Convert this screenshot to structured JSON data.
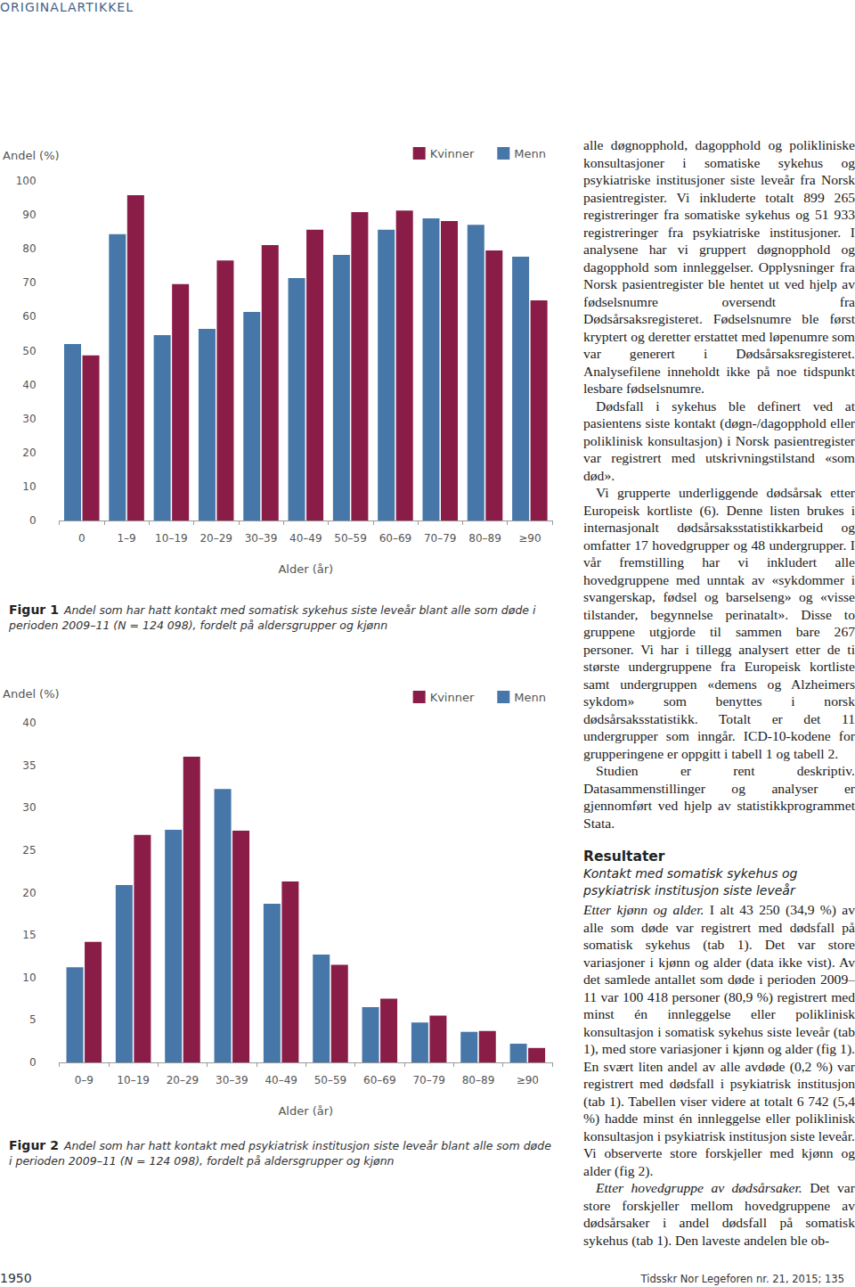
{
  "header": {
    "section": "ORIGINALARTIKKEL"
  },
  "chart_data": [
    {
      "type": "bar",
      "categories": [
        "0",
        "1–9",
        "10–19",
        "20–29",
        "30–39",
        "40–49",
        "50–59",
        "60–69",
        "70–79",
        "80–89",
        "≥90"
      ],
      "series": [
        {
          "name": "Menn",
          "color": "#4677a8",
          "values": [
            52,
            84.3,
            54.6,
            56.4,
            61.4,
            71.4,
            78.2,
            85.6,
            89,
            87.1,
            77.7
          ]
        },
        {
          "name": "Kvinner",
          "color": "#8a1c48",
          "values": [
            48.6,
            95.8,
            69.6,
            76.6,
            81.1,
            85.6,
            90.8,
            91.3,
            88.2,
            79.5,
            64.8
          ]
        }
      ],
      "y_label": "Andel (%)",
      "x_label": "Alder (år)",
      "ylim": [
        0,
        100
      ],
      "yticks": [
        0,
        10,
        20,
        30,
        40,
        50,
        60,
        70,
        80,
        90,
        100
      ],
      "legend": "top-right",
      "grid": false
    },
    {
      "type": "bar",
      "categories": [
        "0–9",
        "10–19",
        "20–29",
        "30–39",
        "40–49",
        "50–59",
        "60–69",
        "70–79",
        "80–89",
        "≥90"
      ],
      "series": [
        {
          "name": "Menn",
          "color": "#4677a8",
          "values": [
            11.2,
            20.9,
            27.4,
            32.2,
            18.7,
            12.7,
            6.5,
            4.7,
            3.6,
            2.2
          ]
        },
        {
          "name": "Kvinner",
          "color": "#8a1c48",
          "values": [
            14.2,
            26.8,
            36.0,
            27.3,
            21.3,
            11.5,
            7.5,
            5.5,
            3.7,
            1.7
          ]
        }
      ],
      "y_label": "Andel (%)",
      "x_label": "Alder (år)",
      "ylim": [
        0,
        40
      ],
      "yticks": [
        0,
        5,
        10,
        15,
        20,
        25,
        30,
        35,
        40
      ],
      "legend": "top-right",
      "grid": false
    }
  ],
  "captions": [
    {
      "label": "Figur 1",
      "text": "Andel som har hatt kontakt med somatisk sykehus siste leveår blant alle som døde i perioden 2009–11 (N = 124 098), fordelt på aldersgrupper og kjønn"
    },
    {
      "label": "Figur 2",
      "text": "Andel som har hatt kontakt med psykiatrisk institusjon siste leveår blant alle som døde i perioden 2009–11 (N = 124 098), fordelt på aldersgrupper og kjønn"
    }
  ],
  "body": {
    "paragraphs": [
      "alle døgnopphold, dagopphold og polikliniske konsultasjoner i somatiske sykehus og psykiatriske institusjoner siste leveår fra Norsk pasientregister. Vi inkluderte totalt 899 265 registreringer fra somatiske sykehus og 51 933 registreringer fra psykiatriske institusjoner. I analysene har vi gruppert døgnopphold og dagopphold som innleggelser. Opplysninger fra Norsk pasientregister ble hentet ut ved hjelp av fødselsnumre oversendt fra Dødsårsaksregisteret. Fødselsnumre ble først kryptert og deretter erstattet med løpenumre som var generert i Dødsårsaksregisteret. Analysefilene inneholdt ikke på noe tidspunkt lesbare fødselsnumre.",
      "Dødsfall i sykehus ble definert ved at pasientens siste kontakt (døgn-/dagopphold eller poliklinisk konsultasjon) i Norsk pasientregister var registrert med utskrivningstilstand «som død».",
      "Vi grupperte underliggende dødsårsak etter Europeisk kortliste (6). Denne listen brukes i internasjonalt dødsårsaksstatistikkarbeid og omfatter 17 hovedgrupper og 48 undergrupper. I vår fremstilling har vi inkludert alle hovedgruppene med unntak av «sykdommer i svangerskap, fødsel og barselseng» og «visse tilstander, begynnelse perinatalt». Disse to gruppene utgjorde til sammen bare 267 personer. Vi har i tillegg analysert etter de ti største undergruppene fra Europeisk kortliste samt undergruppen «demens og Alzheimers sykdom» som benyttes i norsk dødsårsaksstatistikk. Totalt er det 11 undergrupper som inngår. ICD-10-kodene for grupperingene er oppgitt i tabell 1 og tabell 2.",
      "Studien er rent deskriptiv. Datasammenstillinger og analyser er gjennomført ved hjelp av statistikkprogrammet Stata."
    ],
    "heading": "Resultater",
    "subheading": "Kontakt med somatisk sykehus og psykiatrisk institusjon siste leveår",
    "results_paragraphs": [
      {
        "lead": "Etter kjønn og alder.",
        "text": "I alt 43 250 (34,9 %) av alle som døde var registrert med dødsfall på somatisk sykehus (tab 1). Det var store variasjoner i kjønn og alder (data ikke vist). Av det samlede antallet som døde i perioden 2009–11 var 100 418 personer (80,9 %) registrert med minst én innleggelse eller poliklinisk konsultasjon i somatisk sykehus siste leveår (tab 1), med store variasjoner i kjønn og alder (fig 1). En svært liten andel av alle avdøde (0,2 %) var registrert med dødsfall i psykiatrisk institusjon (tab 1). Tabellen viser videre at totalt 6 742 (5,4 %) hadde minst én innleggelse eller poliklinisk konsultasjon i psykiatrisk institusjon siste leveår. Vi observerte store forskjeller med kjønn og alder (fig 2)."
      },
      {
        "lead": "Etter hovedgruppe av dødsårsaker.",
        "text": "Det var store forskjeller mellom hovedgruppene av dødsårsaker i andel dødsfall på somatisk sykehus (tab 1). Den laveste andelen ble ob-"
      }
    ]
  },
  "footer": {
    "page": "1950",
    "journal": "Tidsskr Nor Legeforen nr. 21, 2015; 135"
  }
}
